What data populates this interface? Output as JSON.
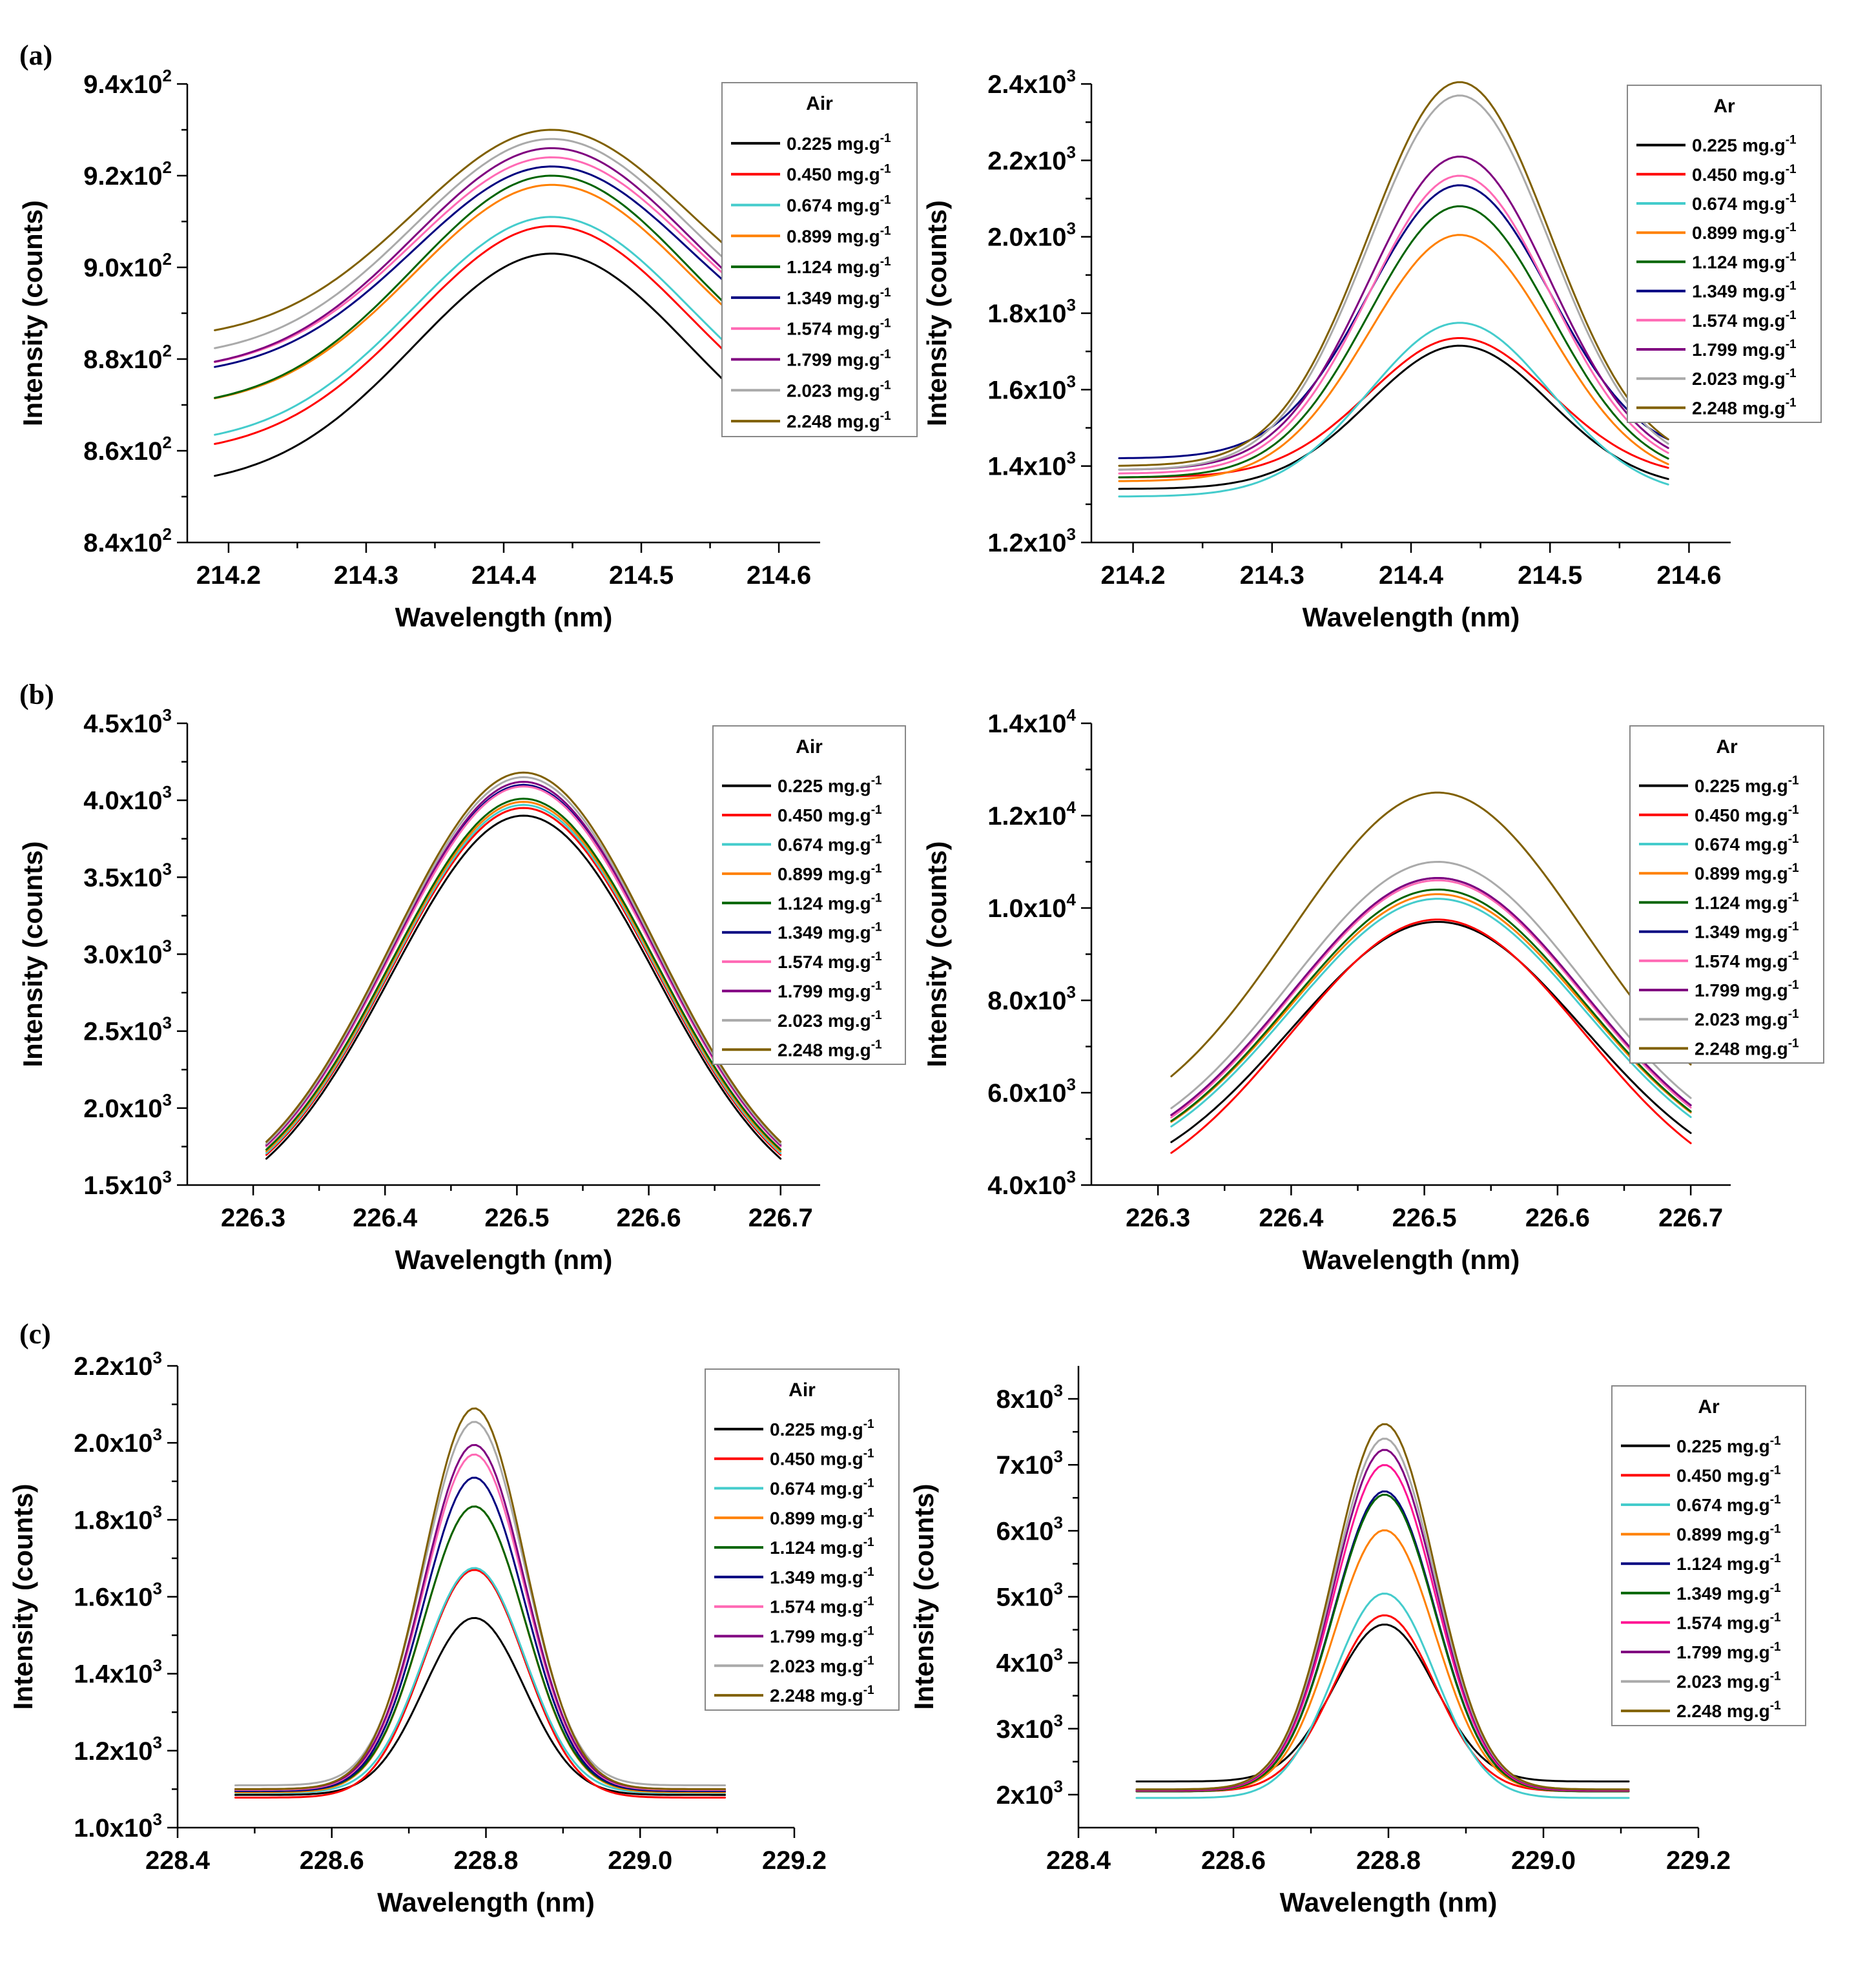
{
  "figure": {
    "panel_labels": [
      "(a)",
      "(b)",
      "(c)"
    ]
  },
  "chart_data": [
    {
      "type": "line",
      "panel": "(a)",
      "legend_title": "Air",
      "title": "",
      "xlabel": "Wavelength (nm)",
      "ylabel": "Intensity (counts)",
      "xlim": [
        214.17,
        214.63
      ],
      "ylim": [
        840,
        940
      ],
      "xticks": [
        214.2,
        214.3,
        214.4,
        214.5,
        214.6
      ],
      "xtick_labels": [
        "214.2",
        "214.3",
        "214.4",
        "214.5",
        "214.6"
      ],
      "yticks": [
        840,
        860,
        880,
        900,
        920,
        940
      ],
      "ytick_labels": [
        [
          "8.4x10",
          "2"
        ],
        [
          "8.6x10",
          "2"
        ],
        [
          "8.8x10",
          "2"
        ],
        [
          "9.0x10",
          "2"
        ],
        [
          "9.2x10",
          "2"
        ],
        [
          "9.4x10",
          "2"
        ]
      ],
      "profile": {
        "peak_x": 214.435,
        "sigma": 0.1,
        "x_start": 214.19,
        "x_end": 214.585
      },
      "series": [
        {
          "name": "0.225 mg.g-1",
          "color": "#000000",
          "base": 852,
          "peak": 903
        },
        {
          "name": "0.450 mg.g-1",
          "color": "#ff0000",
          "base": 859,
          "peak": 909
        },
        {
          "name": "0.674 mg.g-1",
          "color": "#44cccc",
          "base": 861,
          "peak": 911
        },
        {
          "name": "0.899 mg.g-1",
          "color": "#ff8000",
          "base": 869,
          "peak": 918
        },
        {
          "name": "1.124 mg.g-1",
          "color": "#006400",
          "base": 869,
          "peak": 920
        },
        {
          "name": "1.349 mg.g-1",
          "color": "#000080",
          "base": 876,
          "peak": 922
        },
        {
          "name": "1.574 mg.g-1",
          "color": "#ff69b4",
          "base": 877,
          "peak": 924
        },
        {
          "name": "1.799 mg.g-1",
          "color": "#800080",
          "base": 877,
          "peak": 926
        },
        {
          "name": "2.023 mg.g-1",
          "color": "#aaaaaa",
          "base": 880,
          "peak": 928
        },
        {
          "name": "2.248 mg.g-1",
          "color": "#806000",
          "base": 884,
          "peak": 930
        }
      ]
    },
    {
      "type": "line",
      "panel": "(a)",
      "legend_title": "Ar",
      "title": "",
      "xlabel": "Wavelength (nm)",
      "ylabel": "Intensity (counts)",
      "xlim": [
        214.17,
        214.63
      ],
      "ylim": [
        1200,
        2400
      ],
      "xticks": [
        214.2,
        214.3,
        214.4,
        214.5,
        214.6
      ],
      "xtick_labels": [
        "214.2",
        "214.3",
        "214.4",
        "214.5",
        "214.6"
      ],
      "yticks": [
        1200,
        1400,
        1600,
        1800,
        2000,
        2200,
        2400
      ],
      "ytick_labels": [
        [
          "1.2x10",
          "3"
        ],
        [
          "1.4x10",
          "3"
        ],
        [
          "1.6x10",
          "3"
        ],
        [
          "1.8x10",
          "3"
        ],
        [
          "2.0x10",
          "3"
        ],
        [
          "2.2x10",
          "3"
        ],
        [
          "2.4x10",
          "3"
        ]
      ],
      "profile": {
        "peak_x": 214.435,
        "sigma": 0.065,
        "x_start": 214.19,
        "x_end": 214.585
      },
      "series": [
        {
          "name": "0.225 mg.g-1",
          "color": "#000000",
          "base": 1340,
          "peak": 1715
        },
        {
          "name": "0.450 mg.g-1",
          "color": "#ff0000",
          "base": 1370,
          "peak": 1735
        },
        {
          "name": "0.674 mg.g-1",
          "color": "#44cccc",
          "base": 1320,
          "peak": 1775
        },
        {
          "name": "0.899 mg.g-1",
          "color": "#ff8000",
          "base": 1360,
          "peak": 2005
        },
        {
          "name": "1.124 mg.g-1",
          "color": "#006400",
          "base": 1370,
          "peak": 2080
        },
        {
          "name": "1.349 mg.g-1",
          "color": "#000080",
          "base": 1420,
          "peak": 2135
        },
        {
          "name": "1.574 mg.g-1",
          "color": "#ff69b4",
          "base": 1380,
          "peak": 2160
        },
        {
          "name": "1.799 mg.g-1",
          "color": "#800080",
          "base": 1390,
          "peak": 2210
        },
        {
          "name": "2.023 mg.g-1",
          "color": "#aaaaaa",
          "base": 1390,
          "peak": 2370
        },
        {
          "name": "2.248 mg.g-1",
          "color": "#806000",
          "base": 1400,
          "peak": 2405
        }
      ]
    },
    {
      "type": "line",
      "panel": "(b)",
      "legend_title": "Air",
      "title": "",
      "xlabel": "Wavelength (nm)",
      "ylabel": "Intensity (counts)",
      "xlim": [
        226.25,
        226.73
      ],
      "ylim": [
        1500,
        4500
      ],
      "xticks": [
        226.3,
        226.4,
        226.5,
        226.6,
        226.7
      ],
      "xtick_labels": [
        "226.3",
        "226.4",
        "226.5",
        "226.6",
        "226.7"
      ],
      "yticks": [
        1500,
        2000,
        2500,
        3000,
        3500,
        4000,
        4500
      ],
      "ytick_labels": [
        [
          "1.5x10",
          "3"
        ],
        [
          "2.0x10",
          "3"
        ],
        [
          "2.5x10",
          "3"
        ],
        [
          "3.0x10",
          "3"
        ],
        [
          "3.5x10",
          "3"
        ],
        [
          "4.0x10",
          "3"
        ],
        [
          "4.5x10",
          "3"
        ]
      ],
      "profile": {
        "peak_x": 226.505,
        "sigma": 0.1,
        "x_start": 226.31,
        "x_end": 226.7
      },
      "series": [
        {
          "name": "0.225 mg.g-1",
          "color": "#000000",
          "base": 1280,
          "peak": 3900
        },
        {
          "name": "0.450 mg.g-1",
          "color": "#ff0000",
          "base": 1300,
          "peak": 3950
        },
        {
          "name": "0.674 mg.g-1",
          "color": "#44cccc",
          "base": 1310,
          "peak": 3970
        },
        {
          "name": "0.899 mg.g-1",
          "color": "#ff8000",
          "base": 1320,
          "peak": 3990
        },
        {
          "name": "1.124 mg.g-1",
          "color": "#006400",
          "base": 1330,
          "peak": 4010
        },
        {
          "name": "1.349 mg.g-1",
          "color": "#000080",
          "base": 1340,
          "peak": 4100
        },
        {
          "name": "1.574 mg.g-1",
          "color": "#ff69b4",
          "base": 1340,
          "peak": 4090
        },
        {
          "name": "1.799 mg.g-1",
          "color": "#800080",
          "base": 1345,
          "peak": 4120
        },
        {
          "name": "2.023 mg.g-1",
          "color": "#aaaaaa",
          "base": 1350,
          "peak": 4150
        },
        {
          "name": "2.248 mg.g-1",
          "color": "#806000",
          "base": 1360,
          "peak": 4180
        }
      ]
    },
    {
      "type": "line",
      "panel": "(b)",
      "legend_title": "Ar",
      "title": "",
      "xlabel": "Wavelength (nm)",
      "ylabel": "Intensity (counts)",
      "xlim": [
        226.25,
        226.73
      ],
      "ylim": [
        4000,
        14000
      ],
      "xticks": [
        226.3,
        226.4,
        226.5,
        226.6,
        226.7
      ],
      "xtick_labels": [
        "226.3",
        "226.4",
        "226.5",
        "226.6",
        "226.7"
      ],
      "yticks": [
        4000,
        6000,
        8000,
        10000,
        12000,
        14000
      ],
      "ytick_labels": [
        [
          "4.0x10",
          "3"
        ],
        [
          "6.0x10",
          "3"
        ],
        [
          "8.0x10",
          "3"
        ],
        [
          "1.0x10",
          "4"
        ],
        [
          "1.2x10",
          "4"
        ],
        [
          "1.4x10",
          "4"
        ]
      ],
      "profile": {
        "peak_x": 226.51,
        "sigma": 0.11,
        "x_start": 226.31,
        "x_end": 226.7
      },
      "series": [
        {
          "name": "0.225 mg.g-1",
          "color": "#000000",
          "base": 3800,
          "peak": 9700
        },
        {
          "name": "0.450 mg.g-1",
          "color": "#ff0000",
          "base": 3500,
          "peak": 9750
        },
        {
          "name": "0.674 mg.g-1",
          "color": "#44cccc",
          "base": 4100,
          "peak": 10200
        },
        {
          "name": "0.899 mg.g-1",
          "color": "#ff8000",
          "base": 4200,
          "peak": 10300
        },
        {
          "name": "1.124 mg.g-1",
          "color": "#006400",
          "base": 4200,
          "peak": 10400
        },
        {
          "name": "1.349 mg.g-1",
          "color": "#000080",
          "base": 4300,
          "peak": 10650
        },
        {
          "name": "1.574 mg.g-1",
          "color": "#ff69b4",
          "base": 4250,
          "peak": 10600
        },
        {
          "name": "1.799 mg.g-1",
          "color": "#800080",
          "base": 4300,
          "peak": 10650
        },
        {
          "name": "2.023 mg.g-1",
          "color": "#aaaaaa",
          "base": 4400,
          "peak": 11000
        },
        {
          "name": "2.248 mg.g-1",
          "color": "#806000",
          "base": 4900,
          "peak": 12500
        }
      ]
    },
    {
      "type": "line",
      "panel": "(c)",
      "legend_title": "Air",
      "title": "",
      "xlabel": "Wavelength (nm)",
      "ylabel": "Intensity (counts)",
      "xlim": [
        228.4,
        229.2
      ],
      "ylim": [
        1000,
        2200
      ],
      "xticks": [
        228.4,
        228.6,
        228.8,
        229.0,
        229.2
      ],
      "xtick_labels": [
        "228.4",
        "228.6",
        "228.8",
        "229.0",
        "229.2"
      ],
      "yticks": [
        1000,
        1200,
        1400,
        1600,
        1800,
        2000,
        2200
      ],
      "ytick_labels": [
        [
          "1.0x10",
          "3"
        ],
        [
          "1.2x10",
          "3"
        ],
        [
          "1.4x10",
          "3"
        ],
        [
          "1.6x10",
          "3"
        ],
        [
          "1.8x10",
          "3"
        ],
        [
          "2.0x10",
          "3"
        ],
        [
          "2.2x10",
          "3"
        ]
      ],
      "profile": {
        "peak_x": 228.785,
        "sigma": 0.065,
        "x_start": 228.475,
        "x_end": 229.11
      },
      "series": [
        {
          "name": "0.225 mg.g-1",
          "color": "#000000",
          "base": 1085,
          "peak": 1545
        },
        {
          "name": "0.450 mg.g-1",
          "color": "#ff0000",
          "base": 1078,
          "peak": 1670
        },
        {
          "name": "0.674 mg.g-1",
          "color": "#44cccc",
          "base": 1090,
          "peak": 1675
        },
        {
          "name": "0.899 mg.g-1",
          "color": "#ff8000",
          "base": 1092,
          "peak": 1835
        },
        {
          "name": "1.124 mg.g-1",
          "color": "#006400",
          "base": 1095,
          "peak": 1835
        },
        {
          "name": "1.349 mg.g-1",
          "color": "#000080",
          "base": 1095,
          "peak": 1910
        },
        {
          "name": "1.574 mg.g-1",
          "color": "#ff69b4",
          "base": 1098,
          "peak": 1970
        },
        {
          "name": "1.799 mg.g-1",
          "color": "#800080",
          "base": 1100,
          "peak": 1995
        },
        {
          "name": "2.023 mg.g-1",
          "color": "#aaaaaa",
          "base": 1110,
          "peak": 2055
        },
        {
          "name": "2.248 mg.g-1",
          "color": "#806000",
          "base": 1100,
          "peak": 2090
        }
      ]
    },
    {
      "type": "line",
      "panel": "(c)",
      "legend_title": "Ar",
      "title": "",
      "xlabel": "Wavelength (nm)",
      "ylabel": "Intensity (counts)",
      "xlim": [
        228.4,
        229.2
      ],
      "ylim": [
        1500,
        8500
      ],
      "xticks": [
        228.4,
        228.6,
        228.8,
        229.0,
        229.2
      ],
      "xtick_labels": [
        "228.4",
        "228.6",
        "228.8",
        "229.0",
        "229.2"
      ],
      "yticks": [
        2000,
        3000,
        4000,
        5000,
        6000,
        7000,
        8000
      ],
      "ytick_labels": [
        [
          "2x10",
          "3"
        ],
        [
          "3x10",
          "3"
        ],
        [
          "4x10",
          "3"
        ],
        [
          "5x10",
          "3"
        ],
        [
          "6x10",
          "3"
        ],
        [
          "7x10",
          "3"
        ],
        [
          "8x10",
          "3"
        ]
      ],
      "profile": {
        "peak_x": 228.795,
        "sigma": 0.065,
        "x_start": 228.475,
        "x_end": 229.11
      },
      "series": [
        {
          "name": "0.225 mg.g-1",
          "color": "#000000",
          "base": 2200,
          "peak": 4580
        },
        {
          "name": "0.450 mg.g-1",
          "color": "#ff0000",
          "base": 2050,
          "peak": 4720
        },
        {
          "name": "0.674 mg.g-1",
          "color": "#44cccc",
          "base": 1950,
          "peak": 5050
        },
        {
          "name": "0.899 mg.g-1",
          "color": "#ff8000",
          "base": 2050,
          "peak": 6010
        },
        {
          "name": "1.124 mg.g-1",
          "color": "#000080",
          "base": 2050,
          "peak": 6600
        },
        {
          "name": "1.349 mg.g-1",
          "color": "#006400",
          "base": 2050,
          "peak": 6550
        },
        {
          "name": "1.574 mg.g-1",
          "color": "#ff1493",
          "base": 2060,
          "peak": 7000
        },
        {
          "name": "1.799 mg.g-1",
          "color": "#800080",
          "base": 2070,
          "peak": 7230
        },
        {
          "name": "2.023 mg.g-1",
          "color": "#aaaaaa",
          "base": 2080,
          "peak": 7400
        },
        {
          "name": "2.248 mg.g-1",
          "color": "#806000",
          "base": 2080,
          "peak": 7620
        }
      ]
    }
  ]
}
